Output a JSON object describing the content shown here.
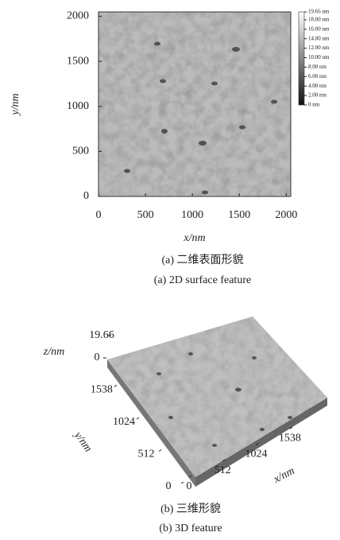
{
  "chart_data": [
    {
      "type": "heatmap",
      "xlabel": "x/nm",
      "ylabel": "y/nm",
      "xlim": [
        0,
        2048
      ],
      "ylim": [
        0,
        2048
      ],
      "xticks": [
        0,
        500,
        1000,
        1500,
        2000
      ],
      "yticks": [
        0,
        500,
        1000,
        1500,
        2000
      ],
      "colorbar": {
        "lim": [
          0,
          19.66
        ],
        "ticks": [
          {
            "value": 19.66,
            "label": "19.66 nm"
          },
          {
            "value": 18,
            "label": "18.00 nm"
          },
          {
            "value": 16,
            "label": "16.00 nm"
          },
          {
            "value": 14,
            "label": "14.00 nm"
          },
          {
            "value": 12,
            "label": "12.00 nm"
          },
          {
            "value": 10,
            "label": "10.00 nm"
          },
          {
            "value": 8,
            "label": "8.00 nm"
          },
          {
            "value": 6,
            "label": "6.00 nm"
          },
          {
            "value": 4,
            "label": "4.00 nm"
          },
          {
            "value": 2,
            "label": "2.00 nm"
          },
          {
            "value": 0,
            "label": "0 nm"
          }
        ]
      },
      "captions": [
        "(a) 二维表面形貌",
        "(a) 2D surface feature"
      ]
    },
    {
      "type": "surface3d",
      "xlabel": "x/nm",
      "ylabel": "y/nm",
      "zlabel": "z/nm",
      "xlim": [
        0,
        2048
      ],
      "ylim": [
        0,
        2048
      ],
      "zlim": [
        0,
        19.66
      ],
      "xticks": [
        0,
        512,
        1024,
        1538
      ],
      "yticks": [
        0,
        512,
        1024,
        1538
      ],
      "zticks": [
        0,
        19.66
      ],
      "captions": [
        "(b) 三维形貌",
        "(b) 3D feature"
      ]
    }
  ]
}
